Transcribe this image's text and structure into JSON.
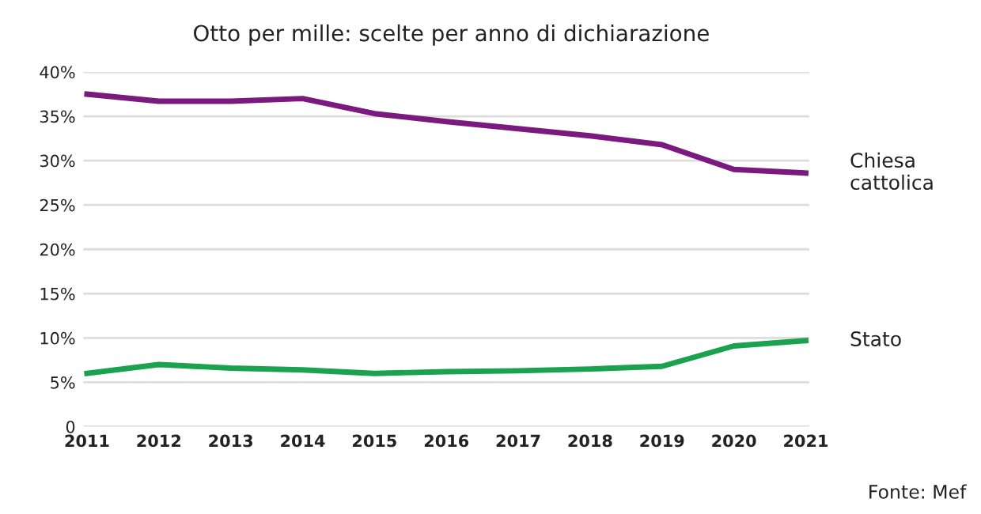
{
  "chart_data": {
    "type": "line",
    "title": "Otto per mille: scelte per anno di dichiarazione",
    "categories": [
      "2011",
      "2012",
      "2013",
      "2014",
      "2015",
      "2016",
      "2017",
      "2018",
      "2019",
      "2020",
      "2021"
    ],
    "series": [
      {
        "name": "Chiesa cattolica",
        "color": "#7b1a7e",
        "values": [
          37.5,
          36.7,
          36.7,
          37.0,
          35.3,
          34.4,
          33.6,
          32.8,
          31.8,
          29.0,
          28.6
        ]
      },
      {
        "name": "Stato",
        "color": "#1aa24e",
        "values": [
          6.0,
          7.0,
          6.6,
          6.4,
          6.0,
          6.2,
          6.3,
          6.5,
          6.8,
          9.1,
          9.7
        ]
      }
    ],
    "ylim": [
      0,
      40
    ],
    "yticks": [
      {
        "value": 0,
        "label": "0"
      },
      {
        "value": 5,
        "label": "5%"
      },
      {
        "value": 10,
        "label": "10%"
      },
      {
        "value": 15,
        "label": "15%"
      },
      {
        "value": 20,
        "label": "20%"
      },
      {
        "value": 25,
        "label": "25%"
      },
      {
        "value": 30,
        "label": "30%"
      },
      {
        "value": 35,
        "label": "35%"
      },
      {
        "value": 40,
        "label": "40%"
      }
    ],
    "grid": "y",
    "legend": false,
    "marker": "none",
    "line_style": "solid",
    "annotations": [
      "Fonte: Mef"
    ]
  }
}
